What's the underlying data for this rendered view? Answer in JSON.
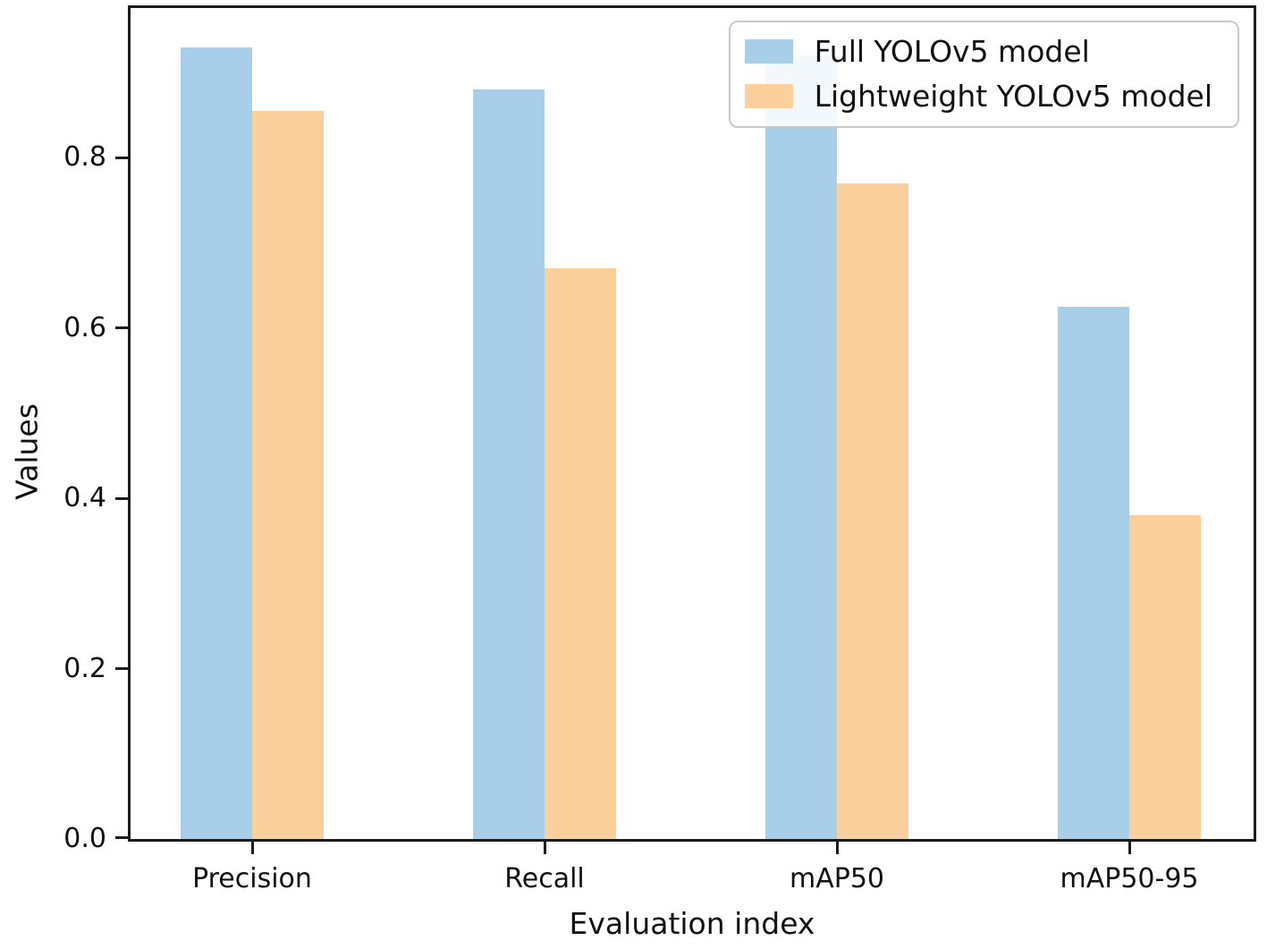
{
  "figure": {
    "background": "#ffffff",
    "spine_color": "#1c1c1c",
    "text_color": "#111111"
  },
  "chart_data": {
    "type": "bar",
    "categories": [
      "Precision",
      "Recall",
      "mAP50",
      "mAP50-95"
    ],
    "series": [
      {
        "name": "Full YOLOv5 model",
        "color": "#A9CEE9",
        "values": [
          0.93,
          0.88,
          0.92,
          0.625
        ]
      },
      {
        "name": "Lightweight YOLOv5 model",
        "color": "#FCD09D",
        "values": [
          0.855,
          0.67,
          0.77,
          0.38
        ]
      }
    ],
    "xlabel": "Evaluation index",
    "ylabel": "Values",
    "y_ticks": [
      "0.0",
      "0.2",
      "0.4",
      "0.6",
      "0.8"
    ],
    "ylim": [
      0,
      0.98
    ],
    "grid": false,
    "legend_position": "upper right",
    "occlusion_note": "Top of the Full YOLOv5 model bar at mAP50 is hidden behind the legend; its value is estimated."
  }
}
